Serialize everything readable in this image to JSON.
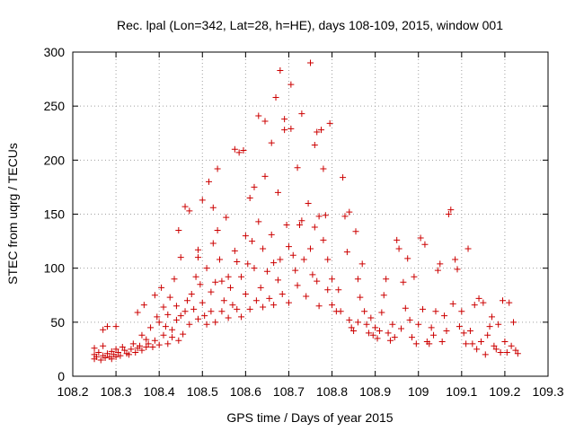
{
  "chart_data": {
    "type": "scatter",
    "title": "Rec. lpal (Lon=342, Lat=28, h=HE), days 108-109, 2015, window 001",
    "xlabel": "GPS time / Days of year 2015",
    "ylabel": "STEC from uqrg / TECUs",
    "xlim": [
      108.2,
      109.3
    ],
    "ylim": [
      0,
      300
    ],
    "xticks": [
      "108.2",
      "108.3",
      "108.4",
      "108.5",
      "108.6",
      "108.7",
      "108.8",
      "108.9",
      "109",
      "109.1",
      "109.2",
      "109.3"
    ],
    "yticks": [
      "0",
      "50",
      "100",
      "150",
      "200",
      "250",
      "300"
    ],
    "grid": true,
    "marker": "+",
    "color": "#cc0000",
    "series": [
      {
        "name": "",
        "points": [
          [
            108.25,
            16
          ],
          [
            108.25,
            20
          ],
          [
            108.25,
            26
          ],
          [
            108.255,
            18
          ],
          [
            108.26,
            22
          ],
          [
            108.265,
            15
          ],
          [
            108.27,
            19
          ],
          [
            108.27,
            28
          ],
          [
            108.27,
            43
          ],
          [
            108.275,
            17
          ],
          [
            108.28,
            21
          ],
          [
            108.28,
            46
          ],
          [
            108.285,
            18
          ],
          [
            108.29,
            23
          ],
          [
            108.29,
            16
          ],
          [
            108.295,
            20
          ],
          [
            108.3,
            46
          ],
          [
            108.3,
            25
          ],
          [
            108.3,
            18
          ],
          [
            108.305,
            22
          ],
          [
            108.31,
            19
          ],
          [
            108.315,
            27
          ],
          [
            108.32,
            24
          ],
          [
            108.325,
            21
          ],
          [
            108.33,
            20
          ],
          [
            108.335,
            25
          ],
          [
            108.34,
            30
          ],
          [
            108.345,
            22
          ],
          [
            108.35,
            26
          ],
          [
            108.35,
            59
          ],
          [
            108.355,
            28
          ],
          [
            108.36,
            24
          ],
          [
            108.36,
            38
          ],
          [
            108.365,
            66
          ],
          [
            108.37,
            27
          ],
          [
            108.37,
            34
          ],
          [
            108.375,
            30
          ],
          [
            108.38,
            45
          ],
          [
            108.385,
            27
          ],
          [
            108.39,
            75
          ],
          [
            108.39,
            33
          ],
          [
            108.395,
            55
          ],
          [
            108.4,
            29
          ],
          [
            108.4,
            50
          ],
          [
            108.405,
            82
          ],
          [
            108.41,
            38
          ],
          [
            108.41,
            64
          ],
          [
            108.415,
            46
          ],
          [
            108.42,
            30
          ],
          [
            108.42,
            57
          ],
          [
            108.425,
            73
          ],
          [
            108.43,
            36
          ],
          [
            108.43,
            43
          ],
          [
            108.435,
            90
          ],
          [
            108.44,
            65
          ],
          [
            108.44,
            52
          ],
          [
            108.445,
            33
          ],
          [
            108.445,
            135
          ],
          [
            108.45,
            110
          ],
          [
            108.45,
            56
          ],
          [
            108.455,
            39
          ],
          [
            108.46,
            157
          ],
          [
            108.46,
            60
          ],
          [
            108.465,
            70
          ],
          [
            108.47,
            153
          ],
          [
            108.47,
            48
          ],
          [
            108.475,
            76
          ],
          [
            108.48,
            62
          ],
          [
            108.485,
            92
          ],
          [
            108.49,
            117
          ],
          [
            108.49,
            110
          ],
          [
            108.49,
            53
          ],
          [
            108.495,
            85
          ],
          [
            108.5,
            68
          ],
          [
            108.5,
            163
          ],
          [
            108.505,
            56
          ],
          [
            108.51,
            100
          ],
          [
            108.51,
            48
          ],
          [
            108.515,
            180
          ],
          [
            108.52,
            78
          ],
          [
            108.52,
            60
          ],
          [
            108.525,
            156
          ],
          [
            108.525,
            123
          ],
          [
            108.53,
            87
          ],
          [
            108.53,
            50
          ],
          [
            108.535,
            192
          ],
          [
            108.535,
            135
          ],
          [
            108.54,
            108
          ],
          [
            108.545,
            88
          ],
          [
            108.545,
            60
          ],
          [
            108.55,
            70
          ],
          [
            108.555,
            147
          ],
          [
            108.56,
            54
          ],
          [
            108.56,
            92
          ],
          [
            108.565,
            82
          ],
          [
            108.57,
            66
          ],
          [
            108.575,
            210
          ],
          [
            108.575,
            116
          ],
          [
            108.58,
            106
          ],
          [
            108.58,
            62
          ],
          [
            108.585,
            207
          ],
          [
            108.59,
            92
          ],
          [
            108.59,
            55
          ],
          [
            108.595,
            209
          ],
          [
            108.6,
            130
          ],
          [
            108.6,
            76
          ],
          [
            108.605,
            104
          ],
          [
            108.61,
            165
          ],
          [
            108.61,
            62
          ],
          [
            108.615,
            125
          ],
          [
            108.62,
            175
          ],
          [
            108.62,
            100
          ],
          [
            108.625,
            70
          ],
          [
            108.63,
            241
          ],
          [
            108.63,
            143
          ],
          [
            108.635,
            82
          ],
          [
            108.64,
            118
          ],
          [
            108.64,
            64
          ],
          [
            108.645,
            236
          ],
          [
            108.645,
            185
          ],
          [
            108.65,
            97
          ],
          [
            108.655,
            72
          ],
          [
            108.66,
            216
          ],
          [
            108.66,
            131
          ],
          [
            108.665,
            105
          ],
          [
            108.665,
            66
          ],
          [
            108.67,
            258
          ],
          [
            108.675,
            170
          ],
          [
            108.675,
            89
          ],
          [
            108.68,
            283
          ],
          [
            108.68,
            108
          ],
          [
            108.685,
            76
          ],
          [
            108.69,
            238
          ],
          [
            108.69,
            228
          ],
          [
            108.695,
            140
          ],
          [
            108.7,
            120
          ],
          [
            108.7,
            68
          ],
          [
            108.705,
            270
          ],
          [
            108.705,
            229
          ],
          [
            108.71,
            112
          ],
          [
            108.715,
            98
          ],
          [
            108.72,
            193
          ],
          [
            108.72,
            84
          ],
          [
            108.725,
            140
          ],
          [
            108.73,
            144
          ],
          [
            108.73,
            243
          ],
          [
            108.735,
            108
          ],
          [
            108.74,
            74
          ],
          [
            108.745,
            160
          ],
          [
            108.75,
            290
          ],
          [
            108.75,
            118
          ],
          [
            108.755,
            94
          ],
          [
            108.76,
            214
          ],
          [
            108.76,
            138
          ],
          [
            108.765,
            226
          ],
          [
            108.765,
            88
          ],
          [
            108.77,
            148
          ],
          [
            108.77,
            65
          ],
          [
            108.775,
            228
          ],
          [
            108.78,
            192
          ],
          [
            108.78,
            126
          ],
          [
            108.785,
            149
          ],
          [
            108.79,
            108
          ],
          [
            108.79,
            80
          ],
          [
            108.795,
            234
          ],
          [
            108.8,
            90
          ],
          [
            108.8,
            66
          ],
          [
            108.81,
            60
          ],
          [
            108.815,
            80
          ],
          [
            108.82,
            60
          ],
          [
            108.825,
            184
          ],
          [
            108.83,
            148
          ],
          [
            108.835,
            115
          ],
          [
            108.84,
            152
          ],
          [
            108.84,
            52
          ],
          [
            108.845,
            45
          ],
          [
            108.85,
            42
          ],
          [
            108.855,
            134
          ],
          [
            108.86,
            90
          ],
          [
            108.86,
            50
          ],
          [
            108.865,
            73
          ],
          [
            108.87,
            104
          ],
          [
            108.875,
            60
          ],
          [
            108.88,
            48
          ],
          [
            108.885,
            40
          ],
          [
            108.89,
            54
          ],
          [
            108.895,
            38
          ],
          [
            108.9,
            45
          ],
          [
            108.905,
            35
          ],
          [
            108.91,
            42
          ],
          [
            108.915,
            59
          ],
          [
            108.92,
            75
          ],
          [
            108.925,
            90
          ],
          [
            108.93,
            40
          ],
          [
            108.935,
            33
          ],
          [
            108.94,
            48
          ],
          [
            108.945,
            36
          ],
          [
            108.95,
            126
          ],
          [
            108.955,
            118
          ],
          [
            108.96,
            44
          ],
          [
            108.965,
            87
          ],
          [
            108.97,
            63
          ],
          [
            108.975,
            109
          ],
          [
            108.98,
            52
          ],
          [
            108.985,
            36
          ],
          [
            108.99,
            92
          ],
          [
            108.995,
            30
          ],
          [
            109.0,
            48
          ],
          [
            109.005,
            128
          ],
          [
            109.01,
            62
          ],
          [
            109.015,
            122
          ],
          [
            109.02,
            32
          ],
          [
            109.025,
            30
          ],
          [
            109.03,
            45
          ],
          [
            109.035,
            38
          ],
          [
            109.04,
            60
          ],
          [
            109.045,
            98
          ],
          [
            109.05,
            104
          ],
          [
            109.055,
            32
          ],
          [
            109.06,
            56
          ],
          [
            109.065,
            42
          ],
          [
            109.07,
            150
          ],
          [
            109.075,
            154
          ],
          [
            109.08,
            67
          ],
          [
            109.085,
            108
          ],
          [
            109.09,
            99
          ],
          [
            109.095,
            46
          ],
          [
            109.1,
            60
          ],
          [
            109.105,
            40
          ],
          [
            109.11,
            30
          ],
          [
            109.115,
            118
          ],
          [
            109.12,
            42
          ],
          [
            109.125,
            30
          ],
          [
            109.13,
            66
          ],
          [
            109.135,
            25
          ],
          [
            109.14,
            72
          ],
          [
            109.145,
            32
          ],
          [
            109.15,
            68
          ],
          [
            109.155,
            20
          ],
          [
            109.16,
            38
          ],
          [
            109.165,
            46
          ],
          [
            109.17,
            55
          ],
          [
            109.175,
            28
          ],
          [
            109.18,
            25
          ],
          [
            109.185,
            48
          ],
          [
            109.19,
            22
          ],
          [
            109.195,
            70
          ],
          [
            109.2,
            32
          ],
          [
            109.205,
            22
          ],
          [
            109.21,
            68
          ],
          [
            109.215,
            28
          ],
          [
            109.22,
            50
          ],
          [
            109.225,
            24
          ],
          [
            109.23,
            21
          ]
        ]
      }
    ]
  }
}
